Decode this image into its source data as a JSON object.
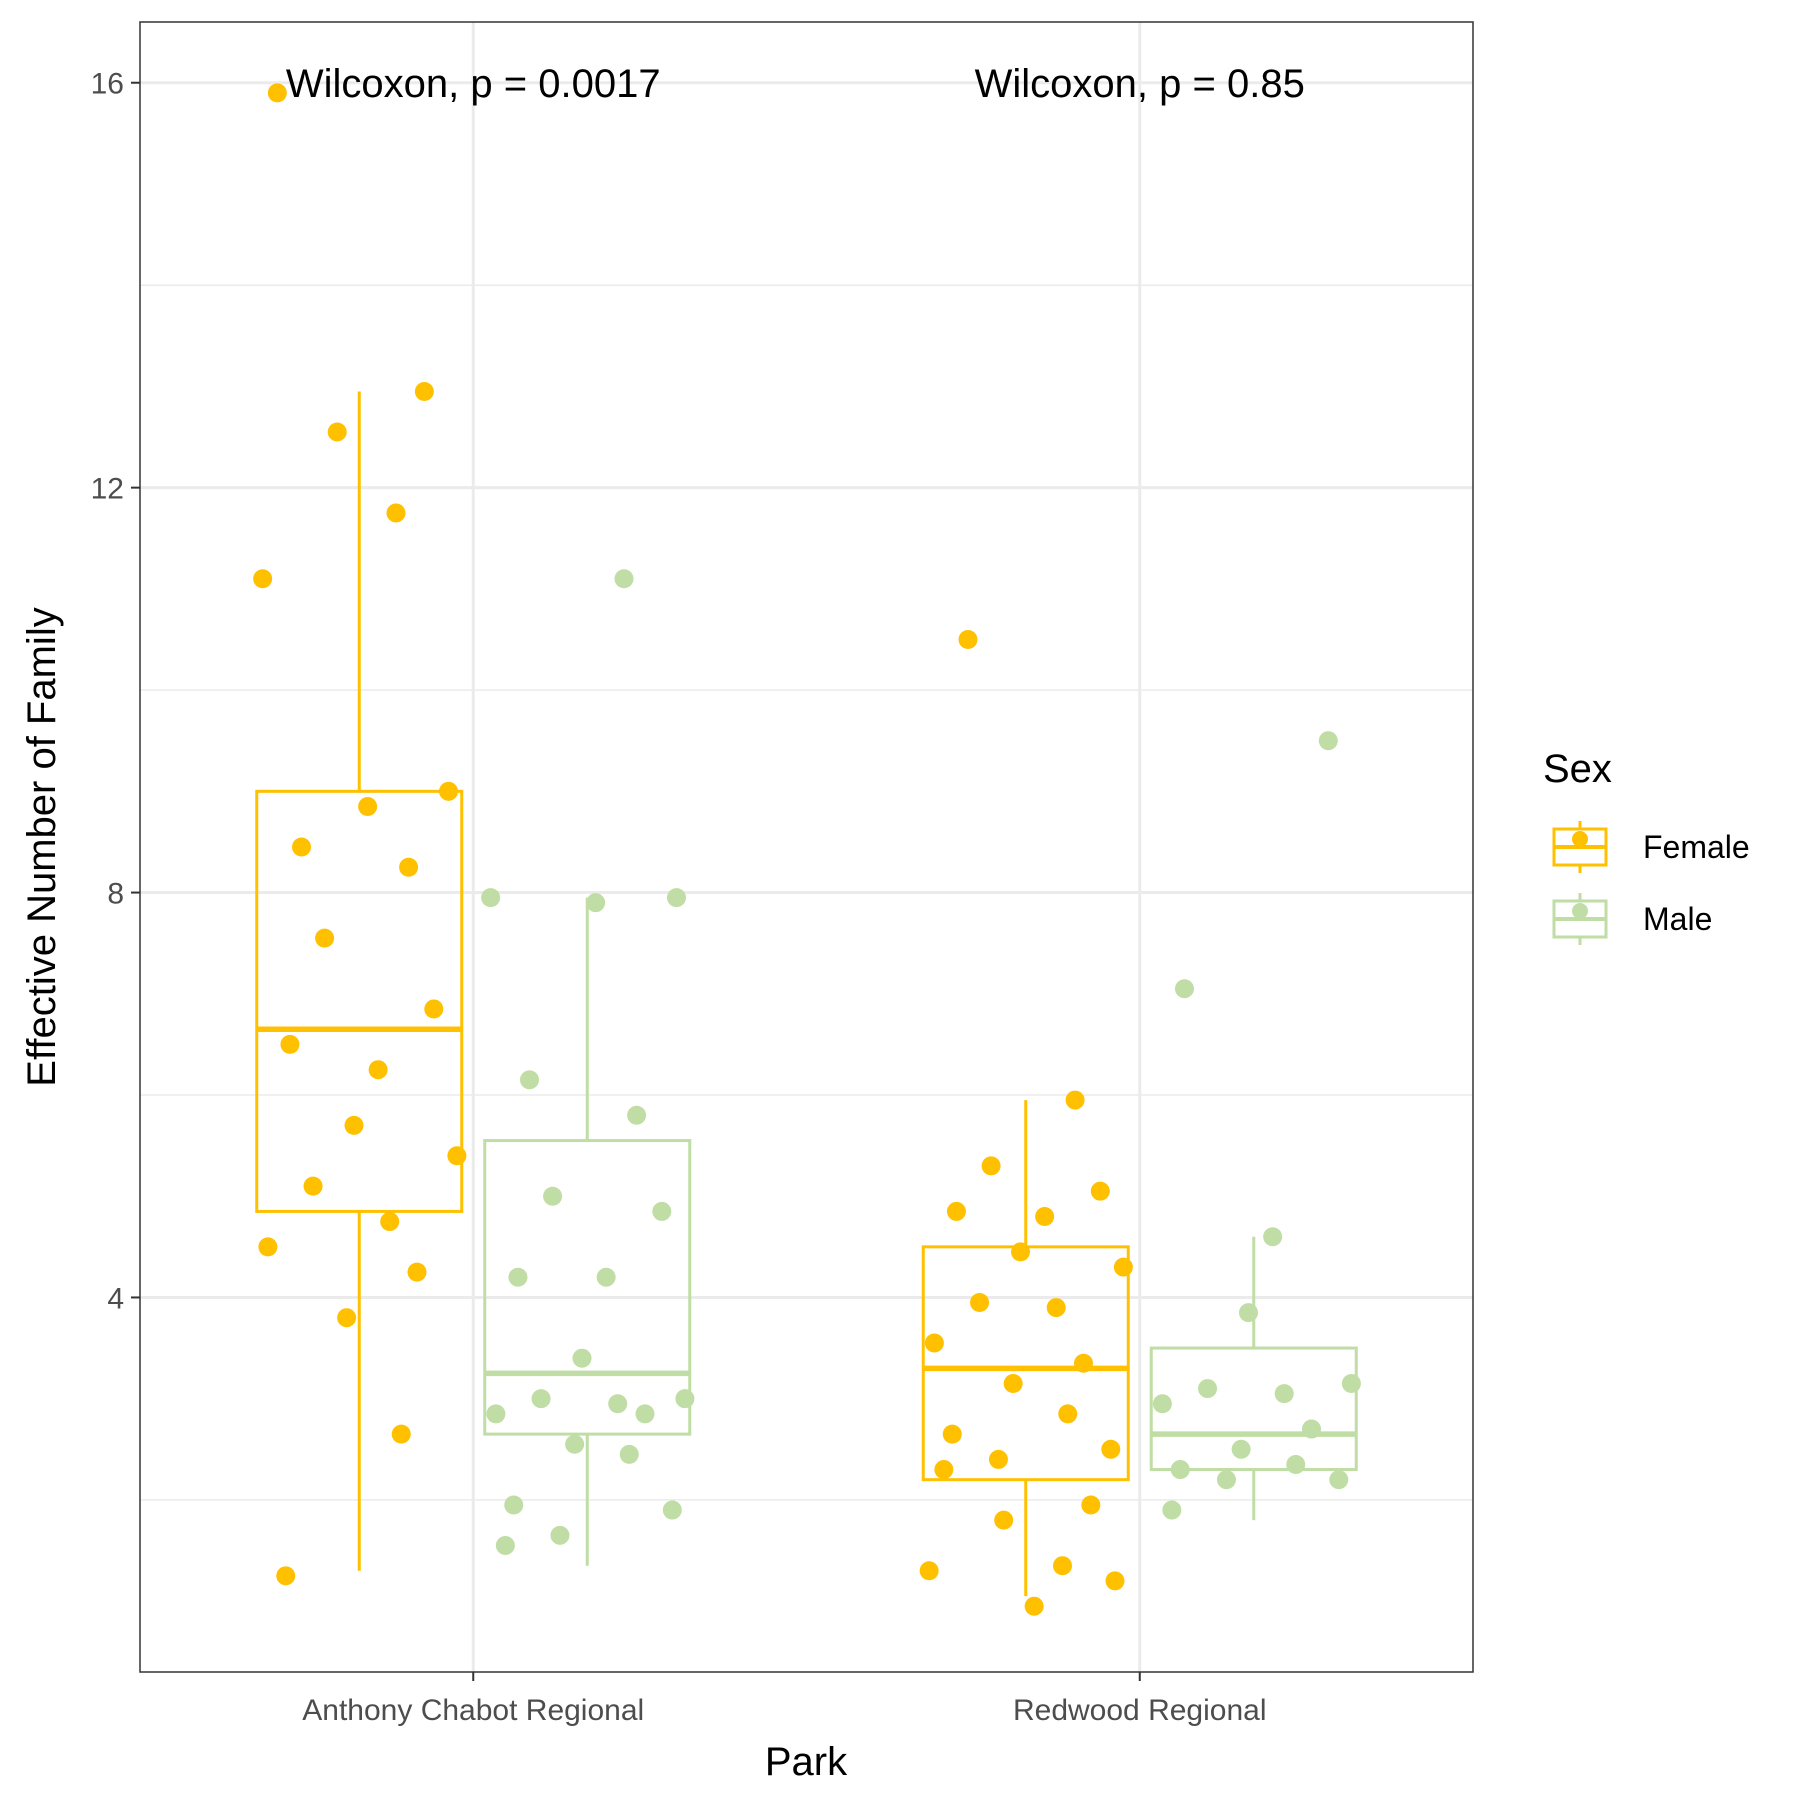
{
  "chart_data": {
    "type": "box",
    "xlabel": "Park",
    "ylabel": "Effective Number of Family",
    "categories": [
      "Anthony Chabot Regional",
      "Redwood Regional"
    ],
    "ylim": [
      0.3,
      16.6
    ],
    "yticks": [
      4,
      8,
      12,
      16
    ],
    "grid": true,
    "legend": {
      "title": "Sex",
      "position": "right"
    },
    "colors": {
      "Female": "#FFC000",
      "Male": "#BFDDA4"
    },
    "annotations": [
      {
        "text": "Wilcoxon, p = 0.0017",
        "category": "Anthony Chabot Regional"
      },
      {
        "text": "Wilcoxon, p = 0.85",
        "category": "Redwood Regional"
      }
    ],
    "series": [
      {
        "name": "Female",
        "boxes": [
          {
            "category": "Anthony Chabot Regional",
            "whisker_low": 1.3,
            "q1": 4.85,
            "median": 6.65,
            "q3": 9.0,
            "whisker_high": 12.95
          },
          {
            "category": "Redwood Regional",
            "whisker_low": 1.05,
            "q1": 2.2,
            "median": 3.3,
            "q3": 4.5,
            "whisker_high": 5.95
          }
        ],
        "points": [
          {
            "category": "Anthony Chabot Regional",
            "values": [
              15.9,
              12.95,
              12.55,
              11.75,
              11.1,
              9.0,
              8.85,
              8.45,
              8.25,
              7.55,
              6.85,
              6.5,
              6.25,
              5.7,
              5.4,
              5.1,
              4.75,
              4.5,
              4.25,
              3.8,
              2.65,
              1.25
            ]
          },
          {
            "category": "Redwood Regional",
            "values": [
              10.5,
              5.95,
              5.3,
              5.05,
              4.85,
              4.8,
              4.45,
              4.3,
              3.95,
              3.9,
              3.55,
              3.35,
              3.15,
              2.85,
              2.65,
              2.5,
              2.4,
              2.3,
              1.95,
              1.8,
              1.35,
              1.3,
              1.2,
              0.95
            ]
          }
        ]
      },
      {
        "name": "Male",
        "boxes": [
          {
            "category": "Anthony Chabot Regional",
            "whisker_low": 1.35,
            "q1": 2.65,
            "median": 3.25,
            "q3": 5.55,
            "whisker_high": 7.95
          },
          {
            "category": "Redwood Regional",
            "whisker_low": 1.8,
            "q1": 2.3,
            "median": 2.65,
            "q3": 3.5,
            "whisker_high": 4.6
          }
        ],
        "points": [
          {
            "category": "Anthony Chabot Regional",
            "values": [
              11.1,
              7.95,
              7.95,
              7.9,
              6.15,
              5.8,
              5.0,
              4.85,
              4.2,
              4.2,
              3.4,
              3.0,
              3.0,
              2.95,
              2.85,
              2.85,
              2.55,
              2.45,
              1.95,
              1.9,
              1.65,
              1.55
            ]
          },
          {
            "category": "Redwood Regional",
            "values": [
              9.5,
              7.05,
              4.6,
              3.85,
              3.15,
              3.1,
              3.05,
              2.95,
              2.7,
              2.5,
              2.35,
              2.3,
              2.2,
              2.2,
              1.9
            ]
          }
        ]
      }
    ]
  }
}
